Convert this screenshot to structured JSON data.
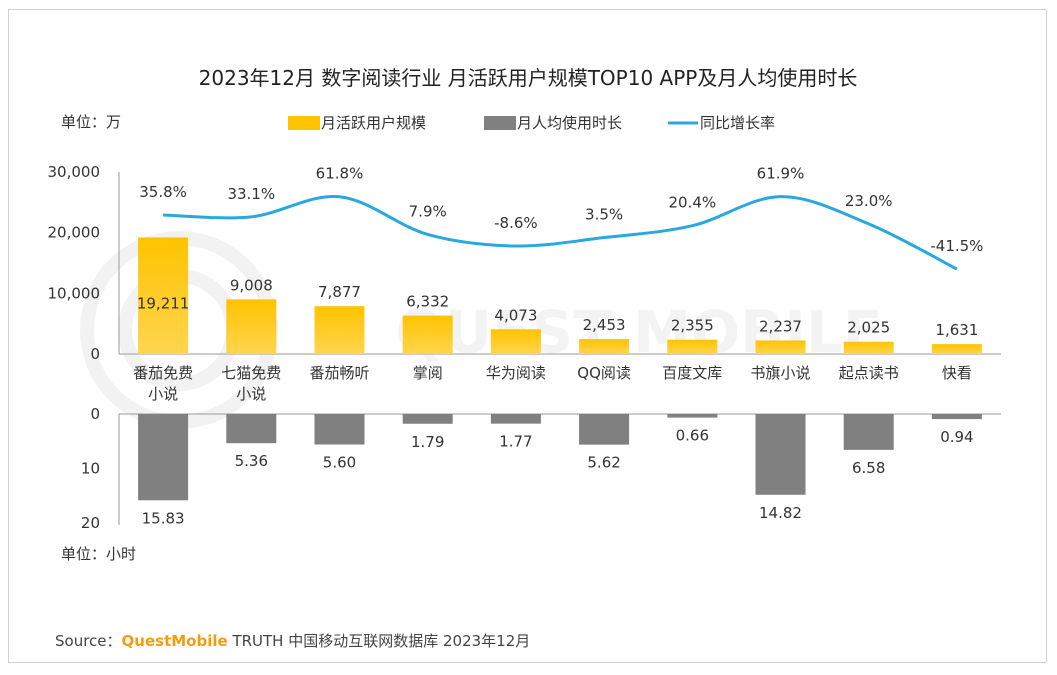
{
  "chart_data": {
    "type": "bar",
    "title": "2023年12月 数字阅读行业 月活跃用户规模TOP10 APP及月人均使用时长",
    "categories": [
      [
        "番茄免费",
        "小说"
      ],
      [
        "七猫免费",
        "小说"
      ],
      [
        "番茄畅听"
      ],
      [
        "掌阅"
      ],
      [
        "华为阅读"
      ],
      [
        "QQ阅读"
      ],
      [
        "百度文库"
      ],
      [
        "书旗小说"
      ],
      [
        "起点读书"
      ],
      [
        "快看"
      ]
    ],
    "top_unit": "单位：万",
    "bottom_unit": "单位：小时",
    "legend": [
      "月活跃用户规模",
      "月人均使用时长",
      "同比增长率"
    ],
    "legend_placement": "top",
    "series": [
      {
        "name": "月活跃用户规模",
        "values": [
          19211,
          9008,
          7877,
          6332,
          4073,
          2453,
          2355,
          2237,
          2025,
          1631
        ],
        "labels": [
          "19,211",
          "9,008",
          "7,877",
          "6,332",
          "4,073",
          "2,453",
          "2,355",
          "2,237",
          "2,025",
          "1,631"
        ],
        "color": "#FFC300",
        "color_light": "#FFD54F"
      },
      {
        "name": "月人均使用时长",
        "values": [
          15.83,
          5.36,
          5.6,
          1.79,
          1.77,
          5.62,
          0.66,
          14.82,
          6.58,
          0.94
        ],
        "labels": [
          "15.83",
          "5.36",
          "5.60",
          "1.79",
          "1.77",
          "5.62",
          "0.66",
          "14.82",
          "6.58",
          "0.94"
        ],
        "color": "#808080"
      },
      {
        "name": "同比增长率",
        "values": [
          35.8,
          33.1,
          61.8,
          7.9,
          -8.6,
          3.5,
          20.4,
          61.9,
          23.0,
          -41.5
        ],
        "labels": [
          "35.8%",
          "33.1%",
          "61.8%",
          "7.9%",
          "-8.6%",
          "3.5%",
          "20.4%",
          "61.9%",
          "23.0%",
          "-41.5%"
        ],
        "color": "#29A8E0"
      }
    ],
    "y_top": {
      "ticks": [
        "30,000",
        "20,000",
        "10,000",
        "0"
      ],
      "range": [
        0,
        30000
      ]
    },
    "y_bottom": {
      "ticks": [
        "0",
        "10",
        "20"
      ],
      "range": [
        0,
        20
      ]
    },
    "watermark": "QUEST MOBILE",
    "grid": false
  },
  "source": {
    "prefix": "Source：",
    "brand": "QuestMobile",
    "suffix": " TRUTH 中国移动互联网数据库 2023年12月"
  }
}
